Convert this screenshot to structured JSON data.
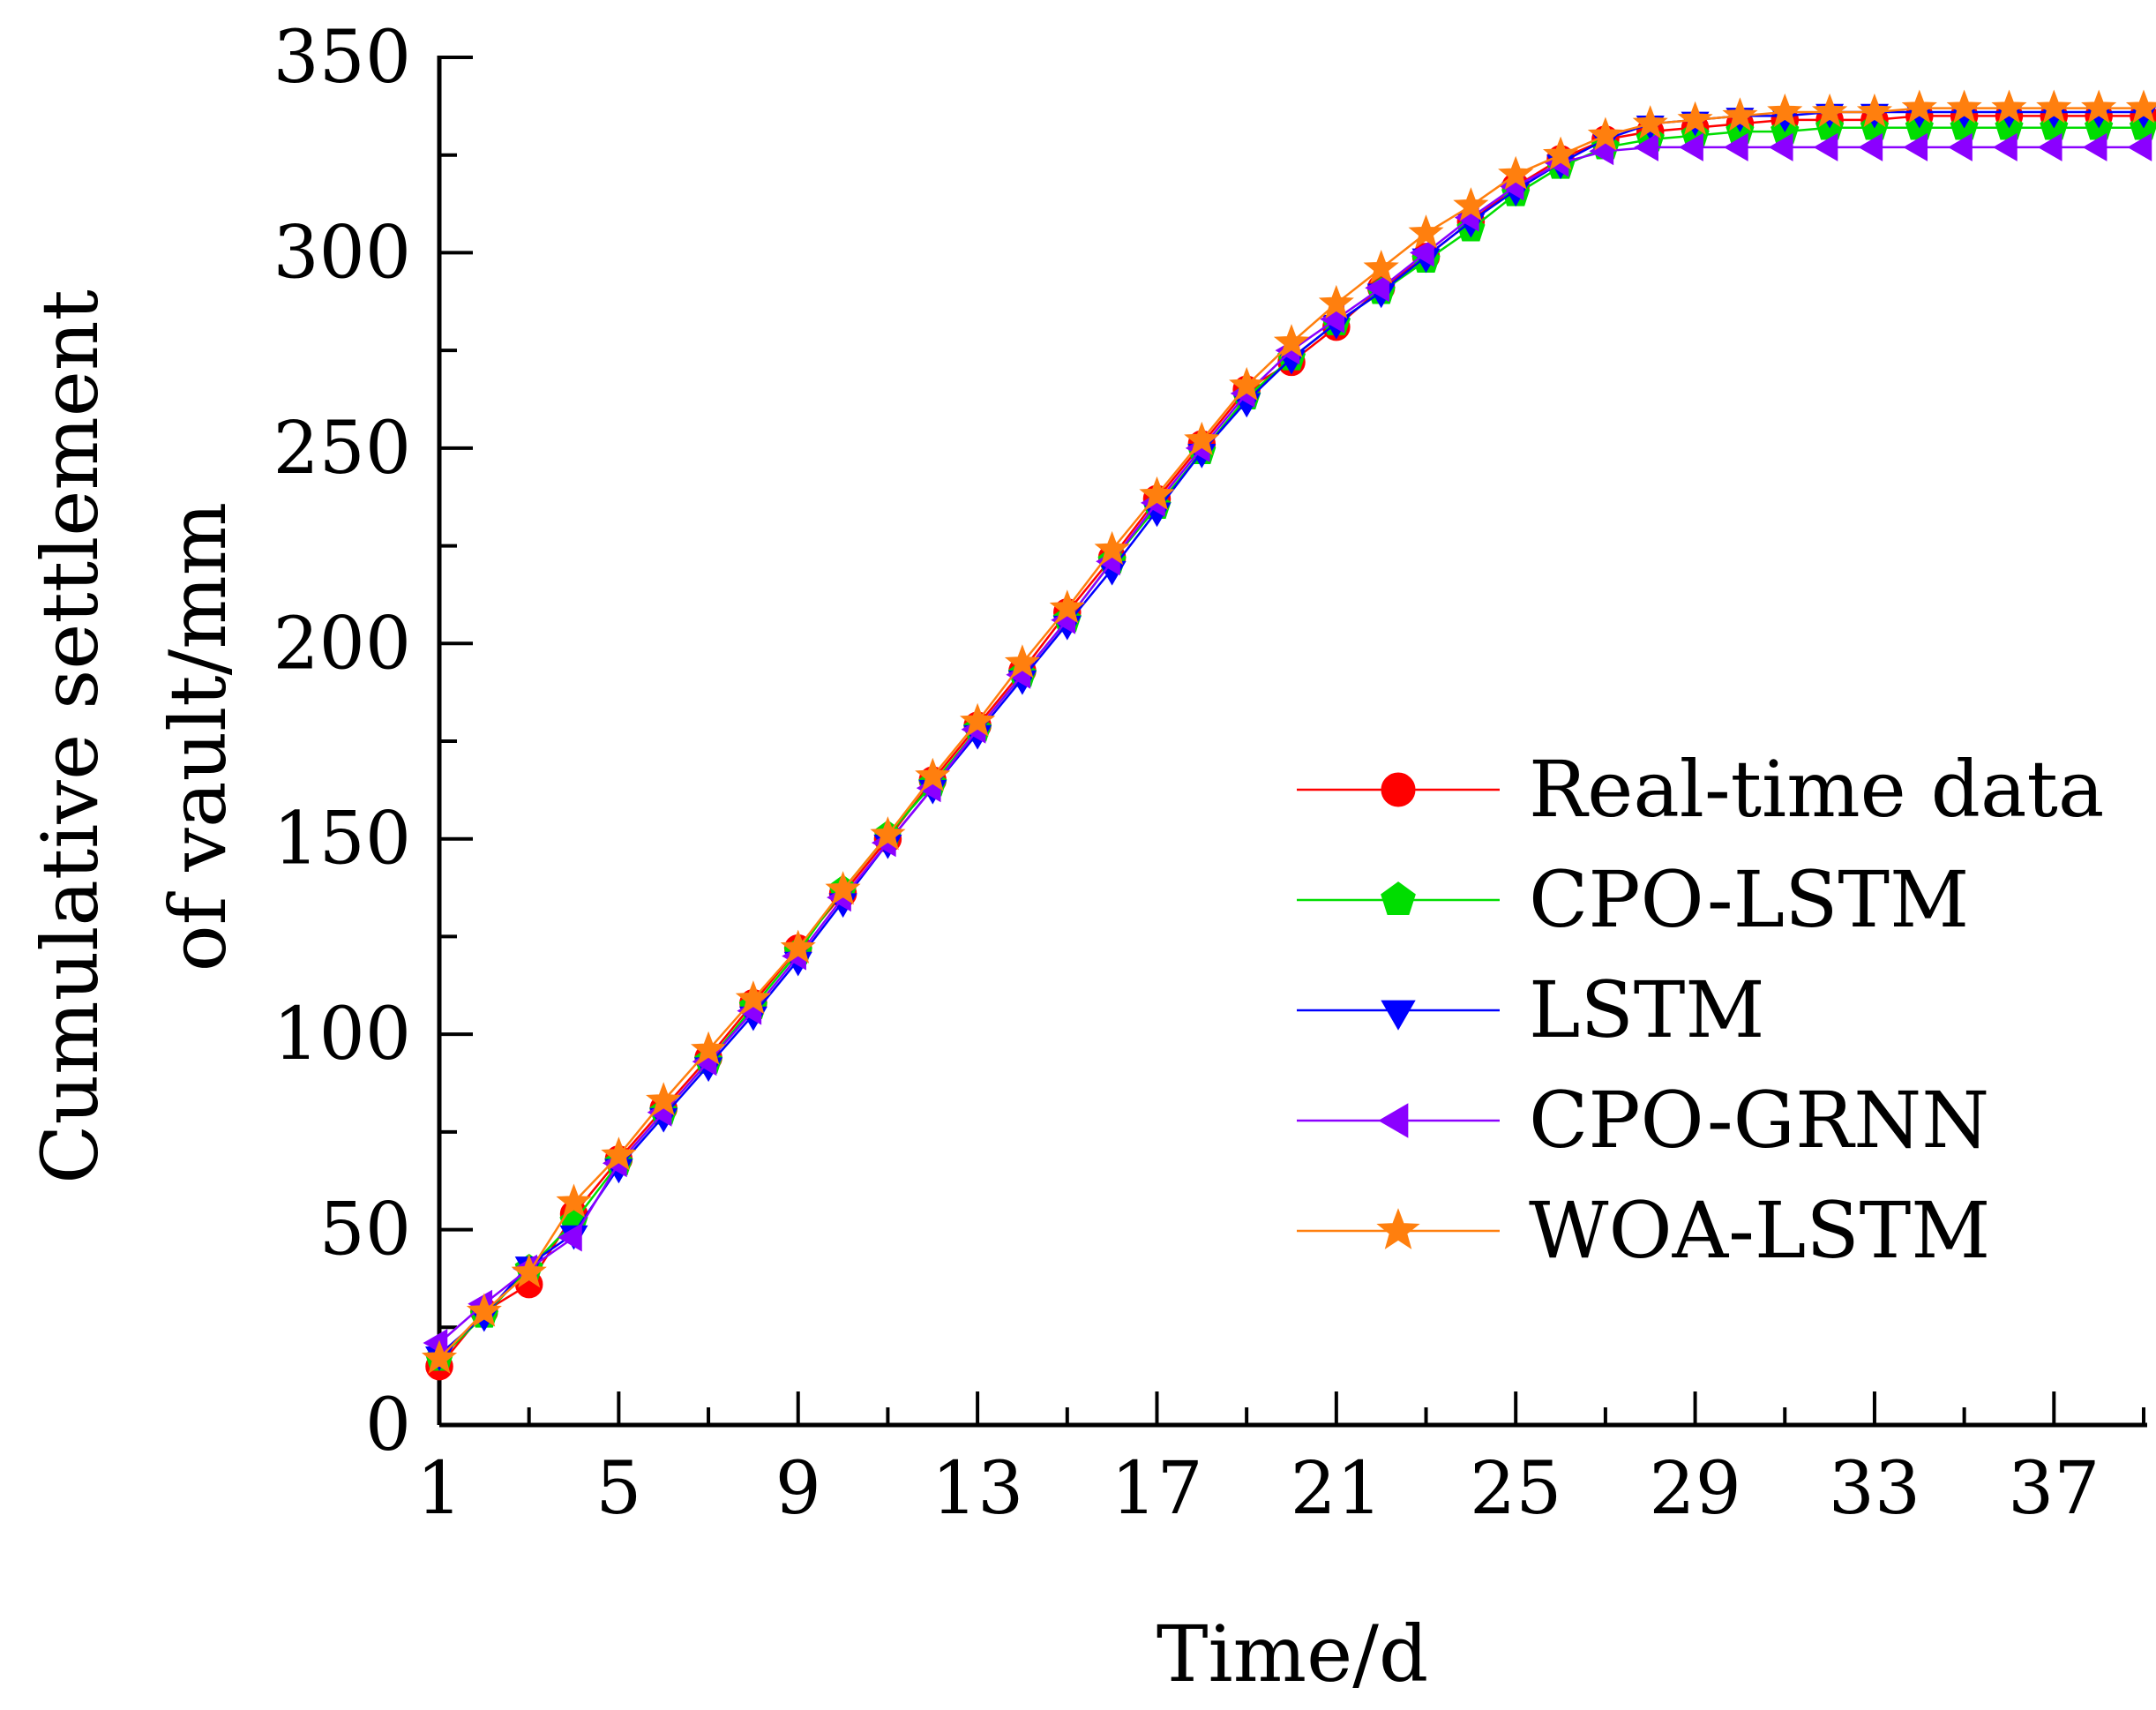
{
  "chart_data": {
    "type": "line",
    "title": "",
    "xlabel": "Time/d",
    "ylabel": "Cumulative settlement of vault/mm",
    "ylabel_lines": [
      "Cumulative settlement",
      "of vault/mm"
    ],
    "xlim": [
      1,
      39
    ],
    "ylim": [
      0,
      350
    ],
    "xticks": [
      "1",
      "5",
      "9",
      "13",
      "17",
      "21",
      "25",
      "29",
      "33",
      "37"
    ],
    "yticks": [
      "0",
      "50",
      "100",
      "150",
      "200",
      "250",
      "300",
      "350"
    ],
    "grid": false,
    "legend_position": "right-middle",
    "series": [
      {
        "name": "Real-time data",
        "color": "#ff0000",
        "marker": "circle",
        "x": [
          1,
          2,
          3,
          4,
          5,
          6,
          7,
          8,
          9,
          10,
          11,
          12,
          13,
          14,
          15,
          16,
          17,
          18,
          19,
          20,
          21,
          22,
          23,
          24,
          25,
          26,
          27,
          28,
          29,
          30,
          31,
          32,
          33,
          34,
          35,
          36,
          37,
          38,
          39
        ],
        "values": [
          15,
          29,
          36,
          54,
          68,
          81,
          94,
          108,
          122,
          136,
          150,
          165,
          179,
          193,
          208,
          222,
          237,
          251,
          265,
          272,
          281,
          291,
          299,
          308,
          317,
          324,
          329,
          331,
          332,
          333,
          334,
          334,
          334,
          335,
          335,
          335,
          335,
          335,
          335
        ]
      },
      {
        "name": "CPO-LSTM",
        "color": "#00dd00",
        "marker": "pentagon",
        "x": [
          1,
          2,
          3,
          4,
          5,
          6,
          7,
          8,
          9,
          10,
          11,
          12,
          13,
          14,
          15,
          16,
          17,
          18,
          19,
          20,
          21,
          22,
          23,
          24,
          25,
          26,
          27,
          28,
          29,
          30,
          31,
          32,
          33,
          34,
          35,
          36,
          37,
          38,
          39
        ],
        "values": [
          17,
          28,
          40,
          52,
          67,
          80,
          93,
          107,
          121,
          137,
          151,
          164,
          178,
          192,
          206,
          221,
          235,
          249,
          263,
          273,
          282,
          290,
          298,
          306,
          315,
          322,
          327,
          329,
          330,
          331,
          331,
          332,
          332,
          332,
          332,
          332,
          332,
          332,
          332
        ]
      },
      {
        "name": "LSTM",
        "color": "#0000ff",
        "marker": "triangle-down",
        "x": [
          1,
          2,
          3,
          4,
          5,
          6,
          7,
          8,
          9,
          10,
          11,
          12,
          13,
          14,
          15,
          16,
          17,
          18,
          19,
          20,
          21,
          22,
          23,
          24,
          25,
          26,
          27,
          28,
          29,
          30,
          31,
          32,
          33,
          34,
          35,
          36,
          37,
          38,
          39
        ],
        "values": [
          18,
          28,
          41,
          49,
          66,
          79,
          92,
          105,
          119,
          134,
          149,
          163,
          177,
          191,
          205,
          219,
          234,
          249,
          262,
          273,
          282,
          290,
          299,
          308,
          316,
          323,
          329,
          333,
          334,
          335,
          335,
          336,
          336,
          336,
          336,
          336,
          336,
          336,
          336
        ]
      },
      {
        "name": "CPO-GRNN",
        "color": "#8b00ff",
        "marker": "triangle-left",
        "x": [
          1,
          2,
          3,
          4,
          5,
          6,
          7,
          8,
          9,
          10,
          11,
          12,
          13,
          14,
          15,
          16,
          17,
          18,
          19,
          20,
          21,
          22,
          23,
          24,
          25,
          26,
          27,
          28,
          29,
          30,
          31,
          32,
          33,
          34,
          35,
          36,
          37,
          38,
          39
        ],
        "values": [
          21,
          31,
          40,
          48,
          67,
          80,
          93,
          106,
          120,
          135,
          149,
          163,
          178,
          192,
          206,
          221,
          236,
          250,
          264,
          275,
          283,
          291,
          300,
          309,
          317,
          323,
          326,
          327,
          327,
          327,
          327,
          327,
          327,
          327,
          327,
          327,
          327,
          327,
          327
        ]
      },
      {
        "name": "WOA-LSTM",
        "color": "#ff7f0e",
        "marker": "star",
        "x": [
          1,
          2,
          3,
          4,
          5,
          6,
          7,
          8,
          9,
          10,
          11,
          12,
          13,
          14,
          15,
          16,
          17,
          18,
          19,
          20,
          21,
          22,
          23,
          24,
          25,
          26,
          27,
          28,
          29,
          30,
          31,
          32,
          33,
          34,
          35,
          36,
          37,
          38,
          39
        ],
        "values": [
          17,
          29,
          39,
          57,
          69,
          83,
          96,
          109,
          122,
          137,
          151,
          166,
          180,
          195,
          209,
          224,
          238,
          252,
          266,
          277,
          287,
          296,
          305,
          312,
          320,
          325,
          330,
          333,
          334,
          335,
          336,
          336,
          336,
          337,
          337,
          337,
          337,
          337,
          337
        ]
      }
    ]
  }
}
